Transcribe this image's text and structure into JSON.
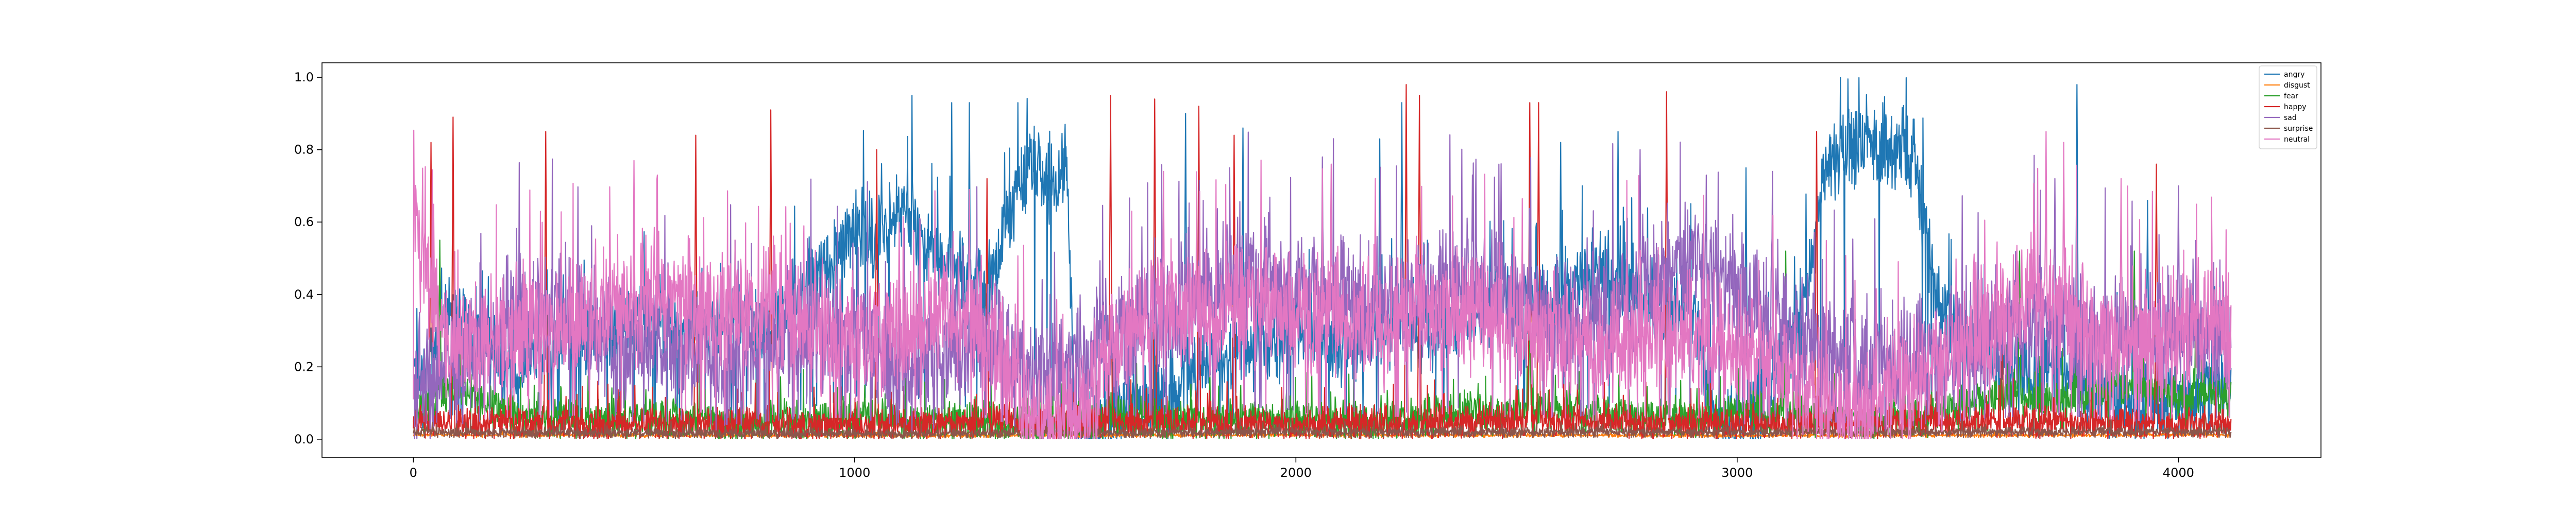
{
  "chart_data": {
    "type": "line",
    "title": "",
    "xlabel": "",
    "ylabel": "",
    "xlim": [
      -207,
      4323
    ],
    "ylim": [
      -0.05,
      1.04
    ],
    "x_ticks": [
      0,
      1000,
      2000,
      3000,
      4000
    ],
    "x_tick_labels": [
      "0",
      "1000",
      "2000",
      "3000",
      "4000"
    ],
    "y_ticks": [
      0.0,
      0.2,
      0.4,
      0.6,
      0.8,
      1.0
    ],
    "y_tick_labels": [
      "0.0",
      "0.2",
      "0.4",
      "0.6",
      "0.8",
      "1.0"
    ],
    "grid": false,
    "legend_position": "top-right",
    "n_points": 4120,
    "series": [
      {
        "name": "angry",
        "color": "#1f77b4",
        "anchors": [
          [
            0,
            0.22
          ],
          [
            20,
            0.15
          ],
          [
            60,
            0.3
          ],
          [
            100,
            0.35
          ],
          [
            150,
            0.25
          ],
          [
            200,
            0.2
          ],
          [
            250,
            0.2
          ],
          [
            300,
            0.25
          ],
          [
            350,
            0.3
          ],
          [
            400,
            0.3
          ],
          [
            450,
            0.3
          ],
          [
            500,
            0.32
          ],
          [
            550,
            0.35
          ],
          [
            600,
            0.3
          ],
          [
            650,
            0.32
          ],
          [
            700,
            0.3
          ],
          [
            750,
            0.35
          ],
          [
            800,
            0.3
          ],
          [
            850,
            0.35
          ],
          [
            900,
            0.45
          ],
          [
            950,
            0.5
          ],
          [
            1000,
            0.6
          ],
          [
            1050,
            0.55
          ],
          [
            1100,
            0.65
          ],
          [
            1150,
            0.55
          ],
          [
            1200,
            0.5
          ],
          [
            1250,
            0.45
          ],
          [
            1300,
            0.4
          ],
          [
            1350,
            0.6
          ],
          [
            1400,
            0.78
          ],
          [
            1450,
            0.72
          ],
          [
            1480,
            0.75
          ],
          [
            1500,
            0.05
          ],
          [
            1520,
            0.02
          ],
          [
            1550,
            0.05
          ],
          [
            1600,
            0.08
          ],
          [
            1700,
            0.1
          ],
          [
            1800,
            0.2
          ],
          [
            1900,
            0.25
          ],
          [
            2000,
            0.3
          ],
          [
            2100,
            0.25
          ],
          [
            2200,
            0.3
          ],
          [
            2300,
            0.3
          ],
          [
            2400,
            0.35
          ],
          [
            2500,
            0.35
          ],
          [
            2600,
            0.4
          ],
          [
            2700,
            0.45
          ],
          [
            2800,
            0.4
          ],
          [
            2900,
            0.35
          ],
          [
            2950,
            0.05
          ],
          [
            3000,
            0.05
          ],
          [
            3050,
            0.1
          ],
          [
            3100,
            0.2
          ],
          [
            3150,
            0.35
          ],
          [
            3200,
            0.75
          ],
          [
            3250,
            0.8
          ],
          [
            3300,
            0.82
          ],
          [
            3350,
            0.8
          ],
          [
            3400,
            0.78
          ],
          [
            3450,
            0.4
          ],
          [
            3500,
            0.3
          ],
          [
            3550,
            0.25
          ],
          [
            3600,
            0.2
          ],
          [
            3700,
            0.2
          ],
          [
            3800,
            0.15
          ],
          [
            3900,
            0.1
          ],
          [
            4000,
            0.12
          ],
          [
            4120,
            0.15
          ]
        ],
        "noise": 0.1,
        "spikes": [
          [
            1130,
            0.95
          ],
          [
            1220,
            0.93
          ],
          [
            1260,
            0.93
          ],
          [
            1370,
            0.93
          ],
          [
            1750,
            0.9
          ],
          [
            1880,
            0.86
          ],
          [
            2190,
            0.83
          ],
          [
            2240,
            0.93
          ],
          [
            2600,
            0.82
          ],
          [
            2730,
            0.85
          ],
          [
            3020,
            0.75
          ],
          [
            3330,
            0.93
          ],
          [
            3770,
            0.98
          ],
          [
            3930,
            0.66
          ]
        ]
      },
      {
        "name": "disgust",
        "color": "#ff7f0e",
        "anchors": [
          [
            0,
            0.012
          ],
          [
            1000,
            0.01
          ],
          [
            2000,
            0.012
          ],
          [
            3000,
            0.01
          ],
          [
            4120,
            0.012
          ]
        ],
        "noise": 0.004,
        "spikes": []
      },
      {
        "name": "fear",
        "color": "#2ca02c",
        "anchors": [
          [
            0,
            0.08
          ],
          [
            50,
            0.1
          ],
          [
            100,
            0.15
          ],
          [
            200,
            0.08
          ],
          [
            300,
            0.06
          ],
          [
            400,
            0.05
          ],
          [
            500,
            0.06
          ],
          [
            600,
            0.06
          ],
          [
            700,
            0.05
          ],
          [
            800,
            0.05
          ],
          [
            900,
            0.05
          ],
          [
            1000,
            0.06
          ],
          [
            1100,
            0.05
          ],
          [
            1200,
            0.05
          ],
          [
            1300,
            0.05
          ],
          [
            1400,
            0.04
          ],
          [
            1500,
            0.05
          ],
          [
            1600,
            0.07
          ],
          [
            1700,
            0.05
          ],
          [
            1800,
            0.05
          ],
          [
            1900,
            0.06
          ],
          [
            2000,
            0.06
          ],
          [
            2100,
            0.05
          ],
          [
            2200,
            0.05
          ],
          [
            2300,
            0.06
          ],
          [
            2400,
            0.07
          ],
          [
            2500,
            0.08
          ],
          [
            2600,
            0.08
          ],
          [
            2700,
            0.07
          ],
          [
            2800,
            0.06
          ],
          [
            2900,
            0.06
          ],
          [
            3000,
            0.07
          ],
          [
            3100,
            0.08
          ],
          [
            3200,
            0.06
          ],
          [
            3300,
            0.05
          ],
          [
            3400,
            0.06
          ],
          [
            3500,
            0.1
          ],
          [
            3600,
            0.12
          ],
          [
            3700,
            0.1
          ],
          [
            3800,
            0.12
          ],
          [
            3900,
            0.15
          ],
          [
            4000,
            0.12
          ],
          [
            4120,
            0.12
          ]
        ],
        "noise": 0.05,
        "spikes": [
          [
            60,
            0.55
          ],
          [
            650,
            0.3
          ],
          [
            2530,
            0.38
          ],
          [
            3110,
            0.52
          ],
          [
            3640,
            0.52
          ],
          [
            3900,
            0.52
          ],
          [
            4040,
            0.52
          ]
        ]
      },
      {
        "name": "happy",
        "color": "#d62728",
        "anchors": [
          [
            0,
            0.05
          ],
          [
            500,
            0.04
          ],
          [
            1000,
            0.04
          ],
          [
            1500,
            0.05
          ],
          [
            2000,
            0.04
          ],
          [
            2500,
            0.05
          ],
          [
            3000,
            0.04
          ],
          [
            3500,
            0.05
          ],
          [
            4120,
            0.04
          ]
        ],
        "noise": 0.04,
        "spikes": [
          [
            40,
            0.82
          ],
          [
            90,
            0.89
          ],
          [
            300,
            0.85
          ],
          [
            640,
            0.84
          ],
          [
            810,
            0.91
          ],
          [
            1050,
            0.8
          ],
          [
            1300,
            0.72
          ],
          [
            1580,
            0.95
          ],
          [
            1680,
            0.94
          ],
          [
            1780,
            0.92
          ],
          [
            1860,
            0.84
          ],
          [
            2250,
            0.98
          ],
          [
            2280,
            0.95
          ],
          [
            2530,
            0.93
          ],
          [
            2550,
            0.93
          ],
          [
            2840,
            0.96
          ],
          [
            3180,
            0.85
          ],
          [
            3600,
            0.4
          ],
          [
            3950,
            0.76
          ]
        ]
      },
      {
        "name": "sad",
        "color": "#9467bd",
        "anchors": [
          [
            0,
            0.15
          ],
          [
            100,
            0.2
          ],
          [
            200,
            0.3
          ],
          [
            300,
            0.35
          ],
          [
            400,
            0.3
          ],
          [
            500,
            0.25
          ],
          [
            600,
            0.25
          ],
          [
            700,
            0.2
          ],
          [
            800,
            0.25
          ],
          [
            900,
            0.3
          ],
          [
            1000,
            0.3
          ],
          [
            1100,
            0.2
          ],
          [
            1200,
            0.2
          ],
          [
            1300,
            0.3
          ],
          [
            1400,
            0.15
          ],
          [
            1500,
            0.2
          ],
          [
            1600,
            0.3
          ],
          [
            1700,
            0.35
          ],
          [
            1800,
            0.4
          ],
          [
            1900,
            0.45
          ],
          [
            2000,
            0.4
          ],
          [
            2100,
            0.4
          ],
          [
            2200,
            0.35
          ],
          [
            2300,
            0.4
          ],
          [
            2400,
            0.45
          ],
          [
            2500,
            0.4
          ],
          [
            2600,
            0.3
          ],
          [
            2700,
            0.35
          ],
          [
            2800,
            0.45
          ],
          [
            2900,
            0.5
          ],
          [
            3000,
            0.4
          ],
          [
            3100,
            0.3
          ],
          [
            3200,
            0.25
          ],
          [
            3300,
            0.2
          ],
          [
            3400,
            0.2
          ],
          [
            3500,
            0.25
          ],
          [
            3600,
            0.3
          ],
          [
            3700,
            0.35
          ],
          [
            3800,
            0.3
          ],
          [
            3900,
            0.25
          ],
          [
            4000,
            0.3
          ],
          [
            4120,
            0.3
          ]
        ],
        "noise": 0.15,
        "spikes": [
          [
            1850,
            0.75
          ],
          [
            2060,
            0.78
          ],
          [
            2400,
            0.73
          ],
          [
            2780,
            0.8
          ],
          [
            2930,
            0.73
          ],
          [
            3080,
            0.74
          ],
          [
            3720,
            0.72
          ],
          [
            4000,
            0.7
          ]
        ]
      },
      {
        "name": "surprise",
        "color": "#8c564b",
        "anchors": [
          [
            0,
            0.02
          ],
          [
            1000,
            0.015
          ],
          [
            2000,
            0.02
          ],
          [
            3000,
            0.02
          ],
          [
            4120,
            0.02
          ]
        ],
        "noise": 0.012,
        "spikes": []
      },
      {
        "name": "neutral",
        "color": "#e377c2",
        "anchors": [
          [
            0,
            0.55
          ],
          [
            30,
            0.5
          ],
          [
            60,
            0.3
          ],
          [
            100,
            0.25
          ],
          [
            200,
            0.3
          ],
          [
            300,
            0.3
          ],
          [
            400,
            0.35
          ],
          [
            500,
            0.4
          ],
          [
            600,
            0.4
          ],
          [
            700,
            0.35
          ],
          [
            800,
            0.35
          ],
          [
            900,
            0.3
          ],
          [
            1000,
            0.3
          ],
          [
            1100,
            0.3
          ],
          [
            1200,
            0.35
          ],
          [
            1300,
            0.3
          ],
          [
            1350,
            0.2
          ],
          [
            1400,
            0.05
          ],
          [
            1450,
            0.05
          ],
          [
            1500,
            0.1
          ],
          [
            1550,
            0.15
          ],
          [
            1600,
            0.3
          ],
          [
            1700,
            0.35
          ],
          [
            1800,
            0.35
          ],
          [
            1900,
            0.4
          ],
          [
            2000,
            0.35
          ],
          [
            2100,
            0.35
          ],
          [
            2200,
            0.3
          ],
          [
            2300,
            0.35
          ],
          [
            2400,
            0.35
          ],
          [
            2500,
            0.3
          ],
          [
            2600,
            0.3
          ],
          [
            2700,
            0.25
          ],
          [
            2800,
            0.3
          ],
          [
            2900,
            0.3
          ],
          [
            3000,
            0.25
          ],
          [
            3100,
            0.2
          ],
          [
            3200,
            0.1
          ],
          [
            3300,
            0.08
          ],
          [
            3400,
            0.15
          ],
          [
            3500,
            0.25
          ],
          [
            3600,
            0.35
          ],
          [
            3700,
            0.4
          ],
          [
            3800,
            0.3
          ],
          [
            3900,
            0.25
          ],
          [
            4000,
            0.3
          ],
          [
            4120,
            0.3
          ]
        ],
        "noise": 0.15,
        "spikes": [
          [
            10,
            0.62
          ],
          [
            500,
            0.77
          ],
          [
            1260,
            0.69
          ],
          [
            1700,
            0.74
          ],
          [
            2180,
            0.72
          ],
          [
            3700,
            0.85
          ],
          [
            3740,
            0.82
          ],
          [
            3870,
            0.72
          ]
        ]
      }
    ]
  }
}
